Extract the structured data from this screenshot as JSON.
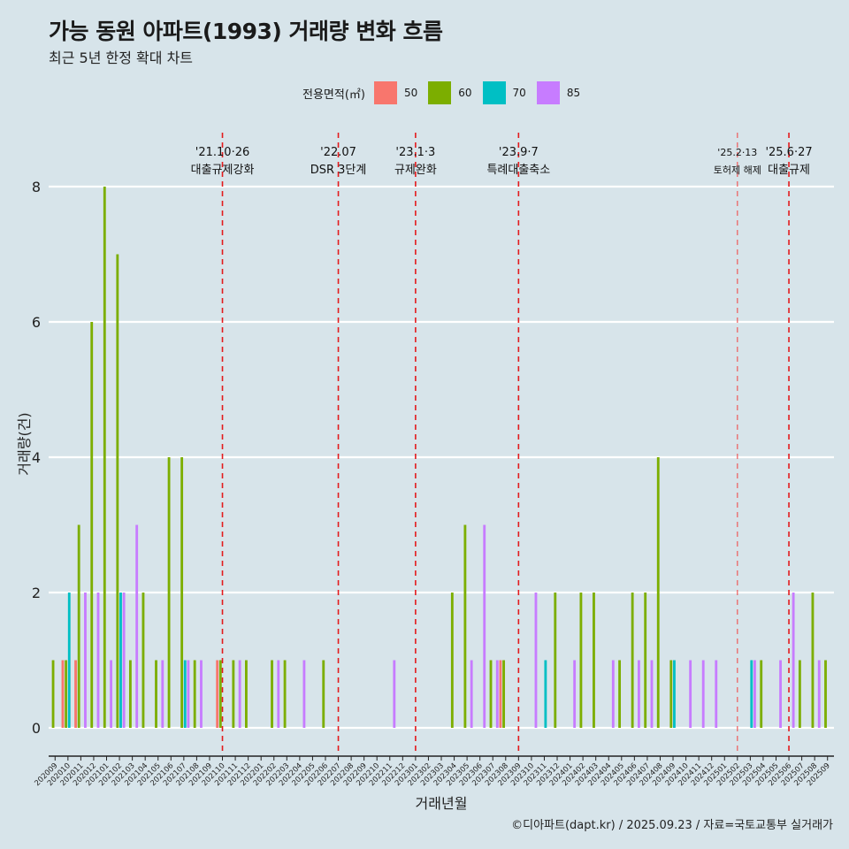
{
  "title": "가능 동원 아파트(1993) 거래량 변화 흐름",
  "subtitle": "최근 5년 한정 확대 차트",
  "caption": "©디아파트(dapt.kr) / 2025.09.23 / 자료=국토교통부 실거래가",
  "legend": {
    "title": "전용면적(㎡)",
    "items": [
      {
        "label": "50",
        "color": "#f8766d"
      },
      {
        "label": "60",
        "color": "#7cae00"
      },
      {
        "label": "70",
        "color": "#00bfc4"
      },
      {
        "label": "85",
        "color": "#c77cff"
      }
    ]
  },
  "chart_data": {
    "type": "bar",
    "title": "가능 동원 아파트(1993) 거래량 변화 흐름",
    "xlabel": "거래년월",
    "ylabel": "거래량(건)",
    "ylim": [
      0,
      8
    ],
    "yticks": [
      0,
      2,
      4,
      6,
      8
    ],
    "categories": [
      "202009",
      "202010",
      "202011",
      "202012",
      "202101",
      "202102",
      "202103",
      "202104",
      "202105",
      "202106",
      "202107",
      "202108",
      "202109",
      "202110",
      "202111",
      "202112",
      "202201",
      "202202",
      "202203",
      "202204",
      "202205",
      "202206",
      "202207",
      "202208",
      "202209",
      "202210",
      "202211",
      "202212",
      "202301",
      "202302",
      "202303",
      "202304",
      "202305",
      "202306",
      "202307",
      "202308",
      "202309",
      "202310",
      "202311",
      "202312",
      "202401",
      "202402",
      "202403",
      "202404",
      "202405",
      "202406",
      "202407",
      "202408",
      "202409",
      "202410",
      "202411",
      "202412",
      "202501",
      "202502",
      "202503",
      "202504",
      "202505",
      "202506",
      "202507",
      "202508",
      "202509"
    ],
    "series": [
      {
        "name": "50",
        "color": "#f8766d",
        "values": [
          0,
          1,
          1,
          0,
          0,
          0,
          0,
          0,
          0,
          0,
          0,
          0,
          0,
          1,
          0,
          0,
          0,
          0,
          0,
          0,
          0,
          0,
          0,
          0,
          0,
          0,
          0,
          0,
          0,
          0,
          0,
          0,
          0,
          0,
          0,
          1,
          0,
          0,
          0,
          0,
          0,
          0,
          0,
          0,
          0,
          0,
          0,
          0,
          0,
          0,
          0,
          0,
          0,
          0,
          0,
          0,
          0,
          0,
          0,
          0,
          0
        ]
      },
      {
        "name": "60",
        "color": "#7cae00",
        "values": [
          1,
          1,
          3,
          6,
          8,
          7,
          1,
          2,
          1,
          4,
          4,
          1,
          0,
          1,
          1,
          1,
          0,
          1,
          1,
          0,
          0,
          1,
          0,
          0,
          0,
          0,
          0,
          0,
          0,
          0,
          0,
          2,
          3,
          0,
          1,
          1,
          0,
          0,
          0,
          2,
          0,
          2,
          2,
          0,
          1,
          2,
          2,
          4,
          1,
          0,
          0,
          0,
          0,
          0,
          0,
          1,
          0,
          0,
          1,
          2,
          1
        ]
      },
      {
        "name": "70",
        "color": "#00bfc4",
        "values": [
          0,
          2,
          0,
          0,
          0,
          2,
          0,
          0,
          0,
          0,
          1,
          0,
          0,
          0,
          0,
          0,
          0,
          0,
          0,
          0,
          0,
          0,
          0,
          0,
          0,
          0,
          0,
          0,
          0,
          0,
          0,
          0,
          0,
          0,
          0,
          0,
          0,
          0,
          1,
          0,
          0,
          0,
          0,
          0,
          0,
          0,
          0,
          0,
          1,
          0,
          0,
          0,
          0,
          0,
          1,
          0,
          0,
          0,
          0,
          0,
          0
        ]
      },
      {
        "name": "85",
        "color": "#c77cff",
        "values": [
          0,
          0,
          2,
          2,
          1,
          2,
          3,
          0,
          1,
          0,
          1,
          1,
          0,
          0,
          1,
          0,
          0,
          1,
          0,
          1,
          0,
          0,
          0,
          0,
          0,
          0,
          1,
          0,
          0,
          0,
          0,
          0,
          1,
          3,
          1,
          0,
          0,
          2,
          0,
          0,
          1,
          0,
          0,
          1,
          0,
          1,
          1,
          0,
          0,
          1,
          1,
          1,
          0,
          0,
          1,
          0,
          1,
          2,
          0,
          1,
          0
        ]
      }
    ],
    "events": [
      {
        "at": "202110",
        "date": "'21.10·26",
        "label": "대출규제강화",
        "style": "major"
      },
      {
        "at": "202207",
        "date": "'22.07",
        "label": "DSR 3단계",
        "style": "major"
      },
      {
        "at": "202301",
        "date": "'23.1·3",
        "label": "규제완화",
        "style": "major"
      },
      {
        "at": "202309",
        "date": "'23.9·7",
        "label": "특례대출축소",
        "style": "major"
      },
      {
        "at": "202502",
        "date": "'25.2·13",
        "label": "토허제 해제",
        "style": "minor"
      },
      {
        "at": "202506",
        "date": "'25.6·27",
        "label": "대출규제",
        "style": "major"
      }
    ]
  }
}
